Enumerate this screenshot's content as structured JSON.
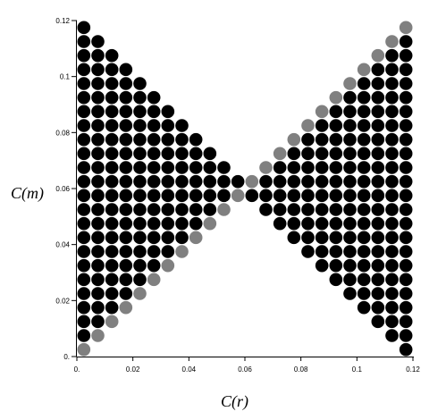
{
  "chart_data": {
    "type": "scatter",
    "title": "",
    "xlabel": "C(r)",
    "ylabel": "C(m)",
    "xlim": [
      0,
      0.12
    ],
    "ylim": [
      0,
      0.12
    ],
    "grid": false,
    "legend": "none",
    "x_ticks": [
      {
        "value": 0,
        "label": "0."
      },
      {
        "value": 0.02,
        "label": "0.02"
      },
      {
        "value": 0.04,
        "label": "0.04"
      },
      {
        "value": 0.06,
        "label": "0.06"
      },
      {
        "value": 0.08,
        "label": "0.08"
      },
      {
        "value": 0.1,
        "label": "0.1"
      },
      {
        "value": 0.12,
        "label": "0.12"
      }
    ],
    "y_ticks": [
      {
        "value": 0,
        "label": "0."
      },
      {
        "value": 0.02,
        "label": "0.02"
      },
      {
        "value": 0.04,
        "label": "0.04"
      },
      {
        "value": 0.06,
        "label": "0.06"
      },
      {
        "value": 0.08,
        "label": "0.08"
      },
      {
        "value": 0.1,
        "label": "0.1"
      },
      {
        "value": 0.12,
        "label": "0.12"
      }
    ],
    "grid_step": 0.005,
    "colors": {
      "black": "#000000",
      "gray": "#808080"
    },
    "left_region": "black where x < 0.06 - |y - 0.06| (y from 0.0025 to 0.1175); gray on the lower edge where y + 0.0025 = x",
    "right_region": "black where x > 0.06 + |y - 0.06|; gray on the upper edge where x = y, with gaps in the lower part"
  }
}
